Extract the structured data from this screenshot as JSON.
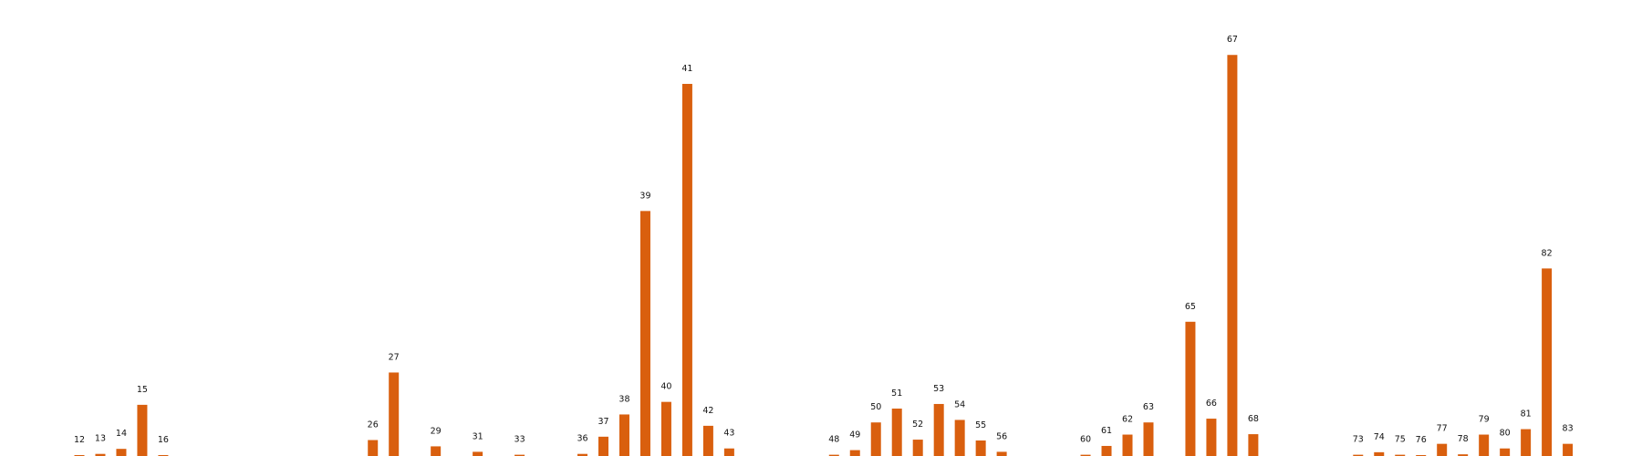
{
  "chart_data": {
    "type": "bar",
    "title": "",
    "xlabel": "",
    "ylabel": "",
    "axes_visible": false,
    "grid": false,
    "legend": "none",
    "bar_color": "#d95f0e",
    "ylim": [
      0,
      100
    ],
    "categories": [
      "12",
      "13",
      "14",
      "15",
      "16",
      "26",
      "27",
      "29",
      "31",
      "33",
      "36",
      "37",
      "38",
      "39",
      "40",
      "41",
      "42",
      "43",
      "48",
      "49",
      "50",
      "51",
      "52",
      "53",
      "54",
      "55",
      "56",
      "60",
      "61",
      "62",
      "63",
      "65",
      "66",
      "67",
      "68",
      "73",
      "74",
      "75",
      "76",
      "77",
      "78",
      "79",
      "80",
      "81",
      "82",
      "83"
    ],
    "values": [
      0.2,
      0.5,
      1.7,
      12.2,
      0.2,
      3.8,
      19.9,
      2.3,
      1.0,
      0.3,
      0.5,
      4.6,
      9.9,
      58.4,
      12.9,
      88.7,
      7.2,
      1.8,
      0.3,
      1.4,
      8.0,
      11.3,
      3.9,
      12.4,
      8.6,
      3.7,
      1.0,
      0.3,
      2.4,
      5.1,
      8.0,
      32.0,
      8.9,
      95.6,
      5.2,
      0.3,
      0.9,
      0.3,
      0.1,
      2.9,
      0.4,
      5.1,
      1.8,
      6.4,
      44.7,
      2.9
    ]
  }
}
